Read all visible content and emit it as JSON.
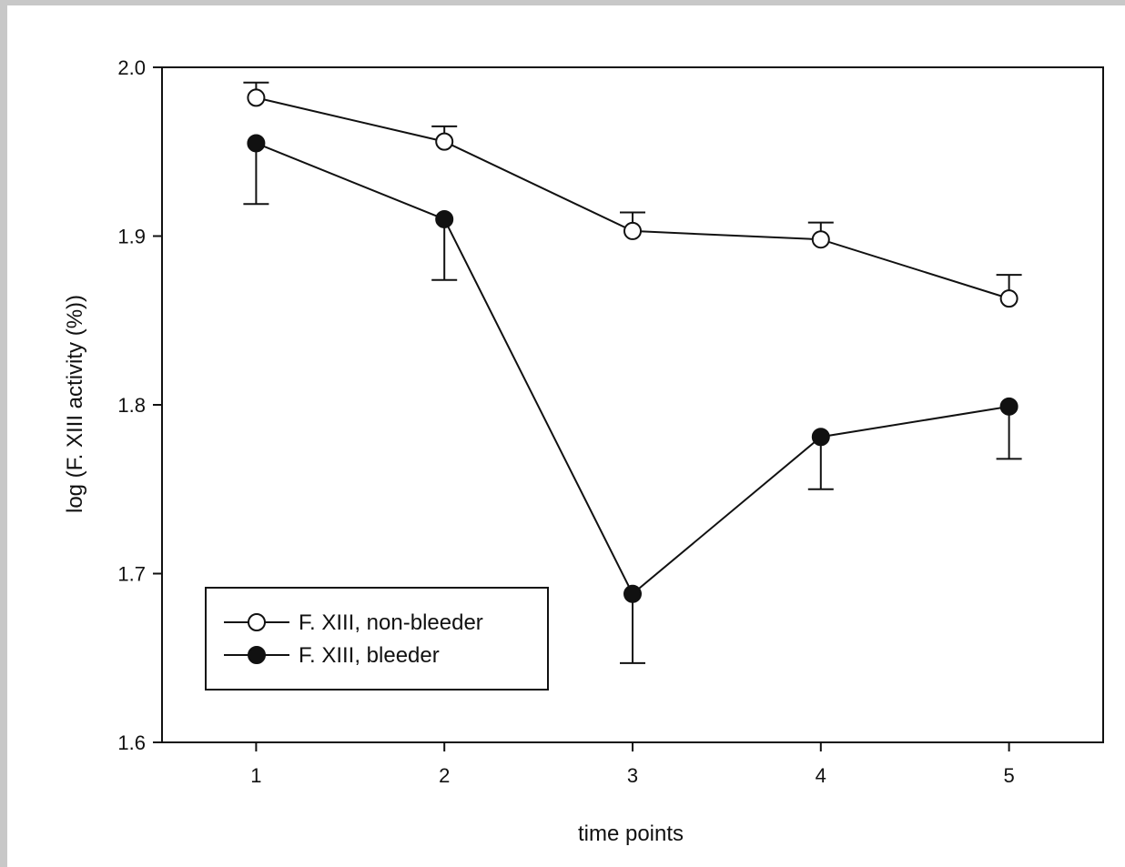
{
  "chart_data": {
    "type": "line",
    "xlabel": "time points",
    "ylabel": "log (F. XIII activity (%))",
    "x": [
      1,
      2,
      3,
      4,
      5
    ],
    "xticks": [
      "1",
      "2",
      "3",
      "4",
      "5"
    ],
    "xlim": [
      0.5,
      5.5
    ],
    "ylim": [
      1.6,
      2.0
    ],
    "yticks": [
      "1.6",
      "1.7",
      "1.8",
      "1.9",
      "2.0"
    ],
    "grid": false,
    "legend_position": "bottom-left",
    "series": [
      {
        "name": "F. XIII, non-bleeder",
        "marker": "open-circle",
        "values": [
          1.982,
          1.956,
          1.903,
          1.898,
          1.863
        ],
        "error": [
          0.009,
          0.009,
          0.011,
          0.01,
          0.014
        ],
        "error_direction": "up"
      },
      {
        "name": "F. XIII, bleeder",
        "marker": "filled-circle",
        "values": [
          1.955,
          1.91,
          1.688,
          1.781,
          1.799
        ],
        "error": [
          0.036,
          0.036,
          0.041,
          0.031,
          0.031
        ],
        "error_direction": "down"
      }
    ]
  }
}
